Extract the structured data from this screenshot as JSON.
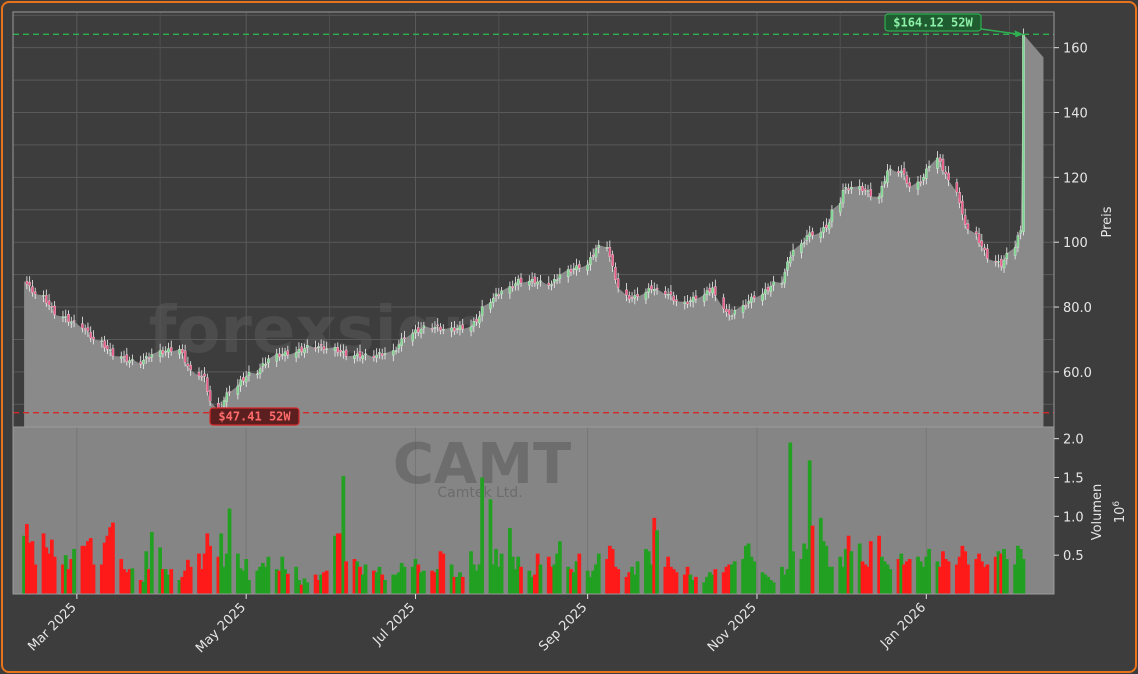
{
  "chart_data": {
    "type": "candlestick",
    "ticker": "CAMT",
    "company": "Camtek Ltd.",
    "watermark": "forexsignale.trade",
    "ylabel_price": "Preis",
    "ylabel_volume": "Volumen",
    "volume_exponent": "10",
    "volume_exponent_power": "6",
    "price_ylim": [
      43,
      171
    ],
    "price_ticks": [
      "60.0",
      "80.0",
      "100",
      "120",
      "140",
      "160"
    ],
    "price_tick_values": [
      60,
      80,
      100,
      120,
      140,
      160
    ],
    "volume_ylim": [
      0,
      2.15
    ],
    "volume_ticks": [
      "0.5",
      "1.0",
      "1.5",
      "2.0"
    ],
    "volume_tick_values": [
      0.5,
      1.0,
      1.5,
      2.0
    ],
    "x_range": [
      "2025-02-06",
      "2026-02-16"
    ],
    "x_ticks": [
      "Mar 2025",
      "May 2025",
      "Jul 2025",
      "Sep 2025",
      "Nov 2025",
      "Jan 2026"
    ],
    "x_tick_dates": [
      "2025-03-01",
      "2025-05-01",
      "2025-07-01",
      "2025-09-01",
      "2025-11-01",
      "2026-01-01"
    ],
    "grid": true,
    "start_date": "2025-02-10",
    "end_date": "2026-02-05",
    "close_path": [
      [
        0,
        88
      ],
      [
        5,
        83
      ],
      [
        10,
        77
      ],
      [
        14,
        75
      ],
      [
        18,
        71
      ],
      [
        22,
        67
      ],
      [
        26,
        64
      ],
      [
        30,
        63
      ],
      [
        35,
        66
      ],
      [
        40,
        67
      ],
      [
        44,
        60
      ],
      [
        47,
        58
      ],
      [
        50,
        47.5
      ],
      [
        53,
        53
      ],
      [
        56,
        57
      ],
      [
        60,
        60
      ],
      [
        65,
        65
      ],
      [
        70,
        66
      ],
      [
        75,
        68
      ],
      [
        80,
        67
      ],
      [
        85,
        65
      ],
      [
        90,
        65
      ],
      [
        95,
        66
      ],
      [
        100,
        72
      ],
      [
        105,
        74
      ],
      [
        110,
        73
      ],
      [
        115,
        74
      ],
      [
        118,
        77
      ],
      [
        120,
        82
      ],
      [
        124,
        85
      ],
      [
        128,
        88
      ],
      [
        132,
        88
      ],
      [
        136,
        87
      ],
      [
        140,
        91
      ],
      [
        145,
        93
      ],
      [
        148,
        98
      ],
      [
        150,
        99
      ],
      [
        152,
        92
      ],
      [
        155,
        83
      ],
      [
        158,
        83
      ],
      [
        162,
        86
      ],
      [
        166,
        84
      ],
      [
        170,
        81
      ],
      [
        174,
        83
      ],
      [
        178,
        86
      ],
      [
        180,
        80
      ],
      [
        182,
        77
      ],
      [
        186,
        81
      ],
      [
        190,
        84
      ],
      [
        195,
        88
      ],
      [
        198,
        96
      ],
      [
        202,
        102
      ],
      [
        205,
        103
      ],
      [
        208,
        106
      ],
      [
        211,
        116
      ],
      [
        214,
        117
      ],
      [
        217,
        116
      ],
      [
        220,
        114
      ],
      [
        223,
        122
      ],
      [
        226,
        122
      ],
      [
        229,
        117
      ],
      [
        232,
        120
      ],
      [
        235,
        126
      ],
      [
        238,
        121
      ],
      [
        240,
        116
      ],
      [
        242,
        108
      ],
      [
        245,
        102
      ],
      [
        248,
        97
      ],
      [
        250,
        94
      ],
      [
        252,
        93
      ],
      [
        254,
        96
      ],
      [
        256,
        102
      ],
      [
        258,
        104
      ],
      [
        261,
        111
      ],
      [
        264,
        118
      ],
      [
        266,
        119
      ],
      [
        268,
        117
      ],
      [
        270,
        111
      ],
      [
        273,
        104
      ],
      [
        276,
        104
      ],
      [
        280,
        108
      ],
      [
        283,
        107
      ],
      [
        285,
        114
      ],
      [
        287,
        124
      ],
      [
        289,
        131
      ],
      [
        291,
        135
      ],
      [
        293,
        146
      ],
      [
        295,
        144
      ],
      [
        298,
        144
      ],
      [
        301,
        146
      ],
      [
        304,
        143
      ],
      [
        307,
        150
      ],
      [
        309,
        148
      ],
      [
        310,
        140
      ],
      [
        311,
        131
      ],
      [
        313,
        140
      ],
      [
        315,
        148
      ],
      [
        316,
        155
      ],
      [
        317,
        161
      ],
      [
        318,
        164.12
      ]
    ],
    "volumes": [
      0.75,
      0.9,
      0.66,
      0.68,
      0.38,
      0.78,
      0.6,
      0.52,
      0.7,
      0.48,
      0.38,
      0.5,
      0.32,
      0.45,
      0.58,
      0.62,
      0.62,
      0.68,
      0.72,
      0.38,
      0.38,
      0.66,
      0.75,
      0.86,
      0.92,
      0.45,
      0.32,
      0.28,
      0.32,
      0.33,
      0.18,
      0.16,
      0.55,
      0.32,
      0.8,
      0.6,
      0.32,
      0.32,
      0.25,
      0.32,
      0.18,
      0.22,
      0.3,
      0.44,
      0.35,
      0.52,
      0.32,
      0.52,
      0.78,
      0.62,
      0.48,
      0.78,
      0.35,
      0.52,
      1.1,
      0.52,
      0.33,
      0.3,
      0.45,
      0.18,
      0.3,
      0.35,
      0.4,
      0.35,
      0.48,
      0.32,
      0.3,
      0.48,
      0.32,
      0.26,
      0.35,
      0.18,
      0.12,
      0.2,
      0.15,
      0.25,
      0.18,
      0.25,
      0.28,
      0.3,
      0.75,
      0.78,
      0.78,
      1.52,
      0.42,
      0.45,
      0.42,
      0.35,
      0.25,
      0.38,
      0.3,
      0.28,
      0.35,
      0.25,
      0.18,
      0.25,
      0.25,
      0.28,
      0.4,
      0.35,
      0.35,
      0.45,
      0.38,
      0.28,
      0.3,
      0.3,
      0.28,
      0.32,
      0.55,
      0.52,
      0.38,
      0.22,
      0.22,
      0.28,
      0.22,
      0.55,
      0.38,
      0.3,
      0.38,
      1.5,
      1.22,
      0.38,
      0.58,
      0.35,
      0.52,
      0.85,
      0.48,
      0.32,
      0.48,
      0.35,
      0.3,
      0.22,
      0.25,
      0.52,
      0.38,
      0.48,
      0.35,
      0.38,
      0.52,
      0.68,
      0.35,
      0.32,
      0.28,
      0.42,
      0.52,
      0.3,
      0.22,
      0.3,
      0.38,
      0.52,
      0.45,
      0.62,
      0.58,
      0.35,
      0.32,
      0.22,
      0.28,
      0.35,
      0.25,
      0.42,
      0.58,
      0.55,
      0.38,
      0.98,
      0.82,
      0.35,
      0.48,
      0.35,
      0.32,
      0.28,
      0.25,
      0.35,
      0.25,
      0.18,
      0.22,
      0.15,
      0.22,
      0.28,
      0.25,
      0.32,
      0.28,
      0.35,
      0.38,
      0.38,
      0.42,
      0.45,
      0.62,
      0.65,
      0.48,
      0.42,
      0.28,
      0.25,
      0.22,
      0.18,
      0.15,
      0.35,
      0.25,
      0.32,
      1.95,
      0.55,
      0.45,
      0.65,
      0.58,
      1.72,
      0.88,
      0.98,
      0.68,
      0.62,
      0.35,
      0.35,
      0.48,
      0.35,
      0.58,
      0.75,
      0.55,
      0.65,
      0.42,
      0.38,
      0.35,
      0.68,
      0.75,
      0.48,
      0.42,
      0.38,
      0.32,
      0.45,
      0.52,
      0.38,
      0.42,
      0.45,
      0.48,
      0.42,
      0.35,
      0.48,
      0.58,
      0.42,
      0.35,
      0.55,
      0.45,
      0.42,
      0.38,
      0.48,
      0.62,
      0.55,
      0.38,
      0.45,
      0.52,
      0.42,
      0.35,
      0.38,
      0.48,
      0.55,
      0.52,
      0.58,
      0.45,
      0.38,
      0.62,
      0.58,
      0.45,
      0.42,
      0.48,
      0.52,
      0.55,
      0.62,
      0.48,
      0.42,
      0.38,
      0.35,
      0.42,
      0.48,
      0.58,
      0.35,
      0.32,
      0.38,
      0.28,
      0.22,
      0.3,
      0.25,
      0.28,
      0.18,
      0.25,
      0.28,
      0.3,
      0.22,
      0.35,
      0.32,
      0.58,
      0.45,
      0.38,
      0.55,
      0.42,
      0.48,
      0.35,
      0.52,
      0.62,
      0.55,
      0.58,
      0.75,
      0.62,
      0.45,
      0.38,
      0.35,
      0.32,
      0.25,
      0.38,
      0.35,
      0.28,
      0.22,
      0.25,
      0.35,
      0.25,
      0.3,
      0.32,
      0.35,
      0.42
    ],
    "annotations": [
      {
        "label": "$164.12 52W",
        "value": 164.12,
        "kind": "high",
        "color": "#2fb050"
      },
      {
        "label": "$47.41 52W",
        "value": 47.41,
        "kind": "low",
        "color": "#d62728"
      }
    ],
    "colors": {
      "up": "#21a021",
      "down": "#ff1a1a",
      "area": "#8a8a8a",
      "candle_up": "#7fd68f",
      "candle_down": "#e8608a"
    }
  }
}
